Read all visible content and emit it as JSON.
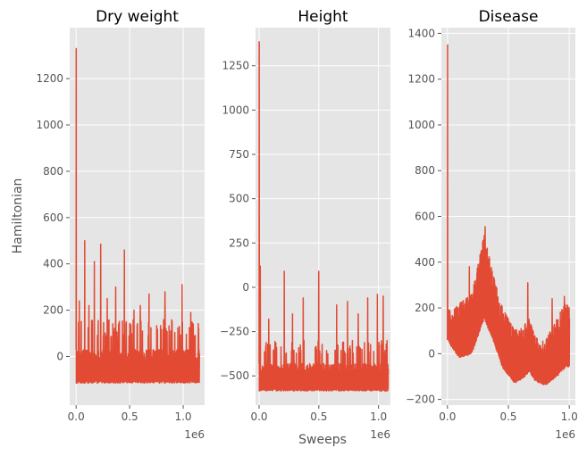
{
  "figure": {
    "ylabel": "Hamiltonian",
    "xlabel": "Sweeps"
  },
  "colors": {
    "line": "#E24A33",
    "panel_bg": "#E5E5E5",
    "grid": "#FFFFFF",
    "tick_text": "#555555"
  },
  "chart_data": [
    {
      "type": "line",
      "title": "Dry weight",
      "xlabel": "",
      "ylabel": "Hamiltonian",
      "x_offset_label": "1e6",
      "xlim": [
        -0.06,
        1.2
      ],
      "ylim": [
        -210,
        1420
      ],
      "x_ticks": [
        0.0,
        0.5,
        1.0
      ],
      "x_tick_labels": [
        "0.0",
        "0.5",
        "1.0"
      ],
      "y_ticks": [
        0,
        200,
        400,
        600,
        800,
        1000,
        1200
      ],
      "y_tick_labels": [
        "0",
        "200",
        "400",
        "600",
        "800",
        "1000",
        "1200"
      ],
      "grid": true,
      "series": [
        {
          "x_range": [
            0,
            1.15
          ],
          "initial_spike": 1330,
          "band": [
            -115,
            30
          ],
          "typical_peak": 160,
          "peaks": [
            [
              0.08,
              500
            ],
            [
              0.17,
              410
            ],
            [
              0.23,
              485
            ],
            [
              0.45,
              460
            ],
            [
              0.37,
              300
            ],
            [
              0.68,
              270
            ],
            [
              0.83,
              280
            ],
            [
              0.99,
              310
            ],
            [
              1.07,
              190
            ],
            [
              0.03,
              240
            ],
            [
              0.54,
              200
            ],
            [
              0.29,
              250
            ],
            [
              0.6,
              220
            ],
            [
              0.12,
              220
            ]
          ]
        }
      ]
    },
    {
      "type": "line",
      "title": "Height",
      "xlabel": "Sweeps",
      "ylabel": "",
      "x_offset_label": "1e6",
      "xlim": [
        -0.03,
        1.1
      ],
      "ylim": [
        -665,
        1465
      ],
      "x_ticks": [
        0.0,
        0.5,
        1.0
      ],
      "x_tick_labels": [
        "0.0",
        "0.5",
        "1.0"
      ],
      "y_ticks": [
        -500,
        -250,
        0,
        250,
        500,
        750,
        1000,
        1250
      ],
      "y_tick_labels": [
        "−500",
        "−250",
        "0",
        "250",
        "500",
        "750",
        "1000",
        "1250"
      ],
      "grid": true,
      "series": [
        {
          "x_range": [
            0,
            1.08
          ],
          "initial_spike": 1385,
          "band": [
            -585,
            -430
          ],
          "typical_peak": -300,
          "peaks": [
            [
              0.01,
              120
            ],
            [
              0.21,
              90
            ],
            [
              0.5,
              90
            ],
            [
              0.37,
              -60
            ],
            [
              0.74,
              -80
            ],
            [
              0.91,
              -60
            ],
            [
              0.99,
              -40
            ],
            [
              0.65,
              -100
            ],
            [
              0.08,
              -180
            ],
            [
              0.28,
              -150
            ],
            [
              0.83,
              -150
            ],
            [
              1.04,
              -50
            ]
          ]
        }
      ]
    },
    {
      "type": "line",
      "title": "Disease",
      "xlabel": "",
      "ylabel": "",
      "x_offset_label": "1e6",
      "xlim": [
        -0.05,
        1.05
      ],
      "ylim": [
        -225,
        1425
      ],
      "x_ticks": [
        0.0,
        0.5,
        1.0
      ],
      "x_tick_labels": [
        "0.0",
        "0.5",
        "1.0"
      ],
      "y_ticks": [
        -200,
        0,
        200,
        400,
        600,
        800,
        1000,
        1200,
        1400
      ],
      "y_tick_labels": [
        "−200",
        "0",
        "200",
        "400",
        "600",
        "800",
        "1000",
        "1200",
        "1400"
      ],
      "grid": true,
      "series": [
        {
          "x_range": [
            0,
            1.0
          ],
          "initial_spike": 1350,
          "envelope": [
            [
              0.0,
              60,
              200
            ],
            [
              0.03,
              30,
              180
            ],
            [
              0.1,
              -20,
              220
            ],
            [
              0.2,
              0,
              260
            ],
            [
              0.3,
              150,
              520
            ],
            [
              0.38,
              50,
              330
            ],
            [
              0.45,
              -60,
              200
            ],
            [
              0.55,
              -130,
              100
            ],
            [
              0.62,
              -110,
              120
            ],
            [
              0.67,
              -80,
              150
            ],
            [
              0.72,
              -120,
              70
            ],
            [
              0.8,
              -140,
              50
            ],
            [
              0.9,
              -100,
              160
            ],
            [
              0.97,
              -60,
              220
            ],
            [
              1.0,
              -60,
              200
            ]
          ],
          "peaks": [
            [
              0.31,
              555
            ],
            [
              0.66,
              310
            ],
            [
              0.18,
              380
            ],
            [
              0.86,
              240
            ],
            [
              0.96,
              250
            ]
          ]
        }
      ]
    }
  ]
}
